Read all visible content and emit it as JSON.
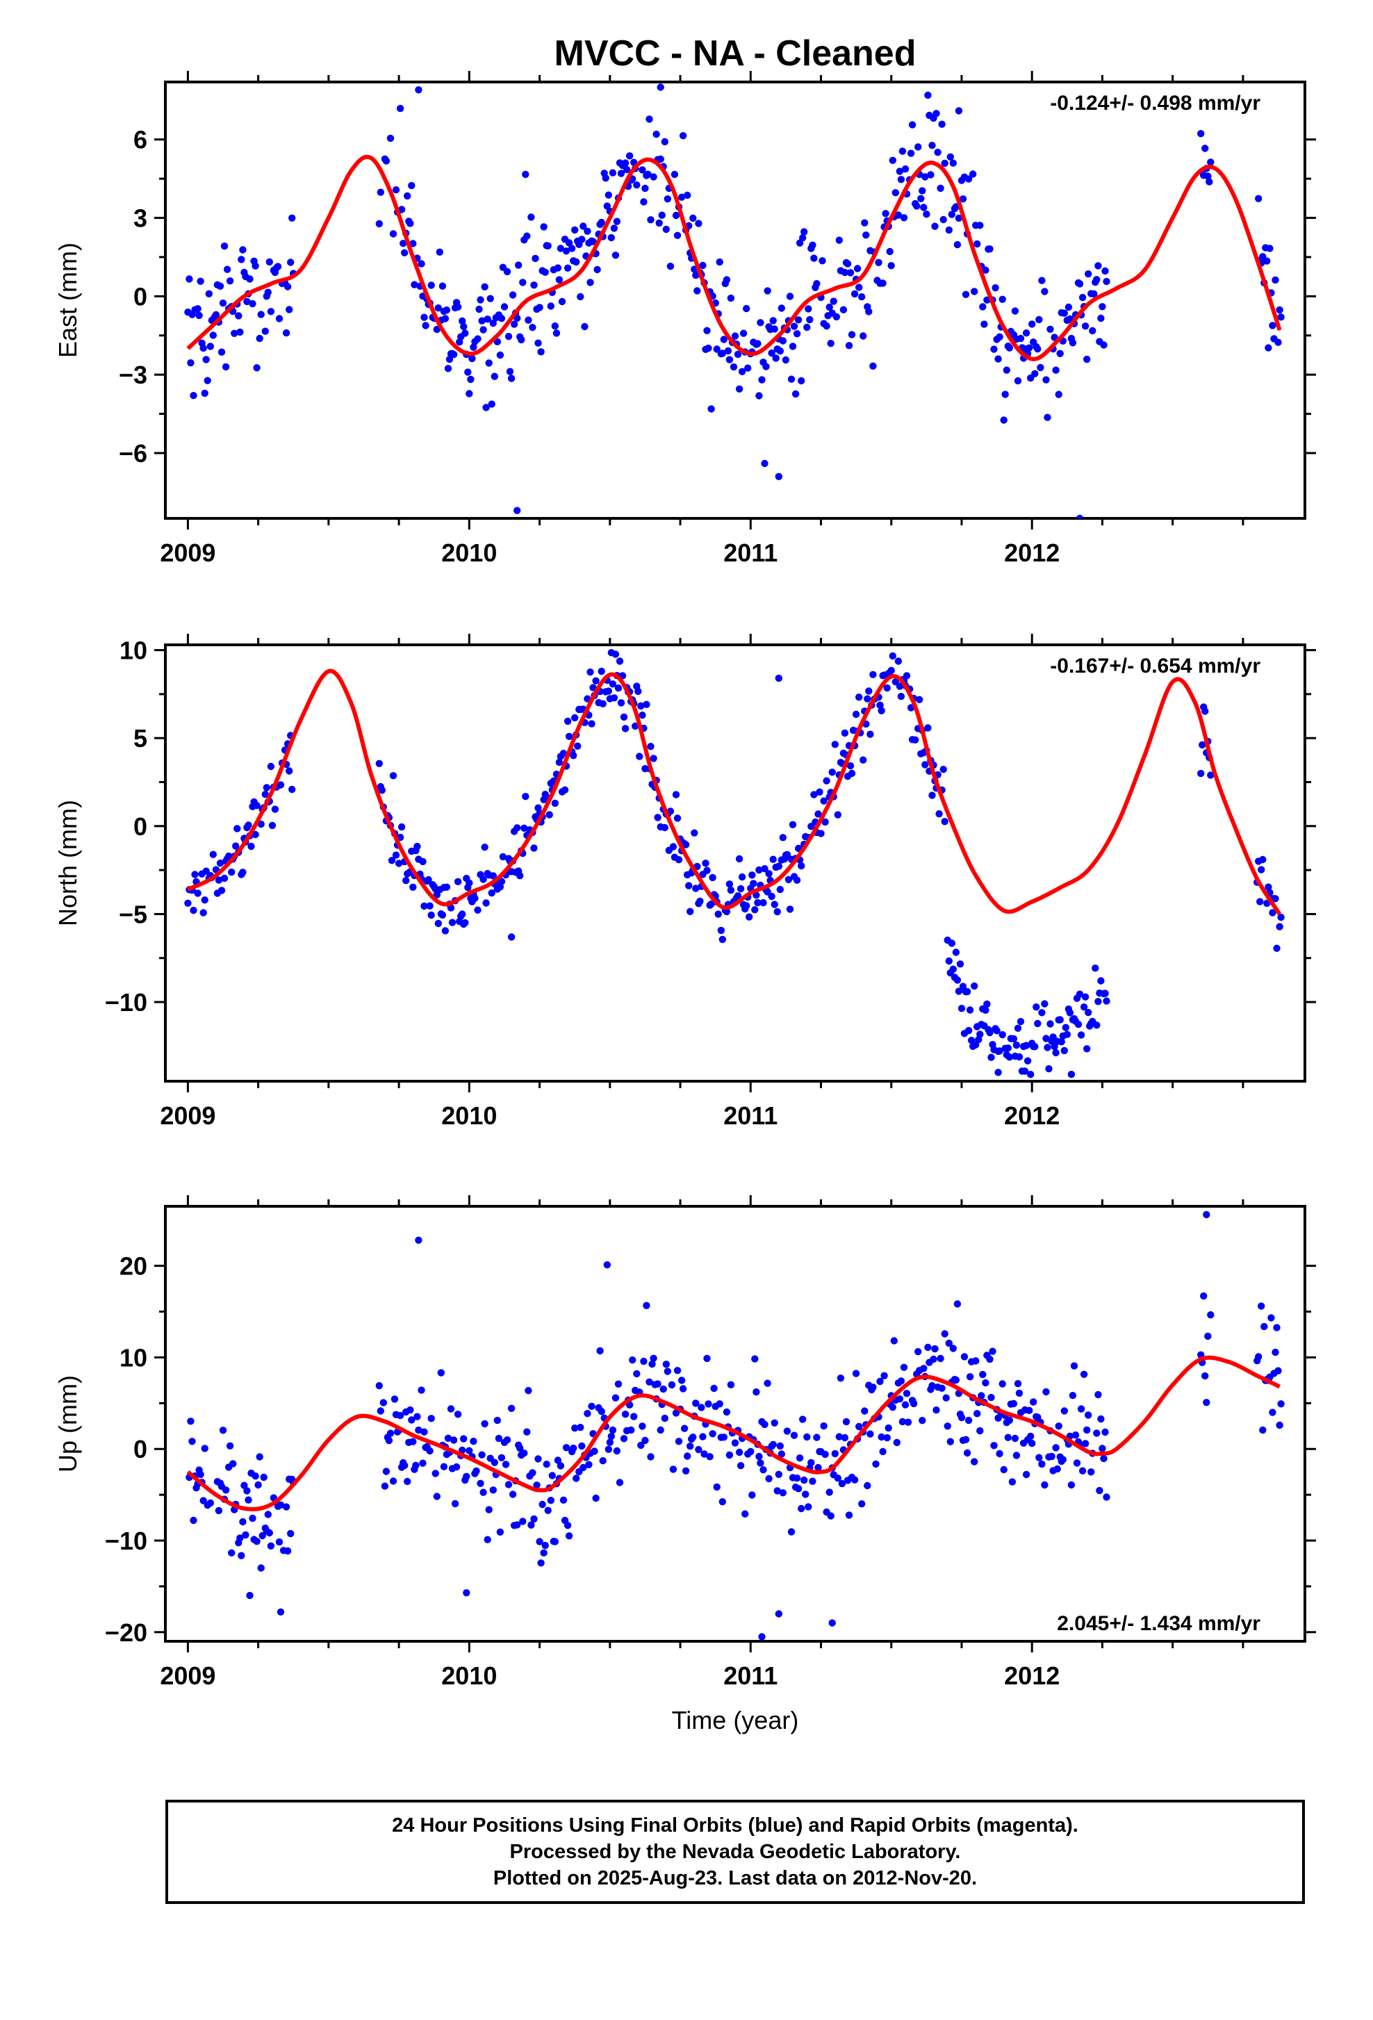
{
  "title": "MVCC  - NA - Cleaned",
  "footer": {
    "line1": "24 Hour Positions Using Final Orbits (blue) and Rapid Orbits (magenta).",
    "line2": "Processed by the Nevada Geodetic Laboratory.",
    "line3": "Plotted on 2025-Aug-23. Last data on 2012-Nov-20."
  },
  "colors": {
    "points": "#0000ff",
    "fit": "#ff0000",
    "axes": "#000000"
  },
  "chart_data": [
    {
      "type": "scatter",
      "component": "east",
      "ylabel": "East (mm)",
      "xlabel": "",
      "xlim": [
        2008.92,
        2012.97
      ],
      "ylim": [
        -8.5,
        8.2
      ],
      "xticks": [
        2009,
        2010,
        2011,
        2012
      ],
      "xtick_labels": [
        "2009",
        "2010",
        "2011",
        "2012"
      ],
      "yticks": [
        -6,
        -3,
        0,
        3,
        6
      ],
      "ytick_labels": [
        "−6",
        "−3",
        "0",
        "3",
        "6"
      ],
      "rate_label": "-0.124+/- 0.498 mm/yr",
      "rate_position": "top-right",
      "gaps": [
        [
          2009.38,
          2009.68
        ],
        [
          2012.27,
          2012.6
        ],
        [
          2012.64,
          2012.8
        ]
      ],
      "data_end": 2012.89,
      "scatter_sigma": 1.25,
      "outliers": [
        [
          2009.82,
          7.9
        ],
        [
          2010.17,
          -8.2
        ],
        [
          2010.68,
          8.0
        ],
        [
          2011.05,
          -6.4
        ],
        [
          2011.1,
          -6.9
        ],
        [
          2011.74,
          7.1
        ],
        [
          2012.17,
          -8.5
        ]
      ],
      "fit": {
        "x": [
          2009.0,
          2009.1,
          2009.2,
          2009.3,
          2009.4,
          2009.5,
          2009.58,
          2009.65,
          2009.72,
          2009.8,
          2009.9,
          2010.0,
          2010.1,
          2010.2,
          2010.3,
          2010.4,
          2010.5,
          2010.58,
          2010.65,
          2010.72,
          2010.8,
          2010.9,
          2011.0,
          2011.1,
          2011.2,
          2011.3,
          2011.4,
          2011.5,
          2011.58,
          2011.65,
          2011.72,
          2011.8,
          2011.9,
          2012.0,
          2012.1,
          2012.2,
          2012.3,
          2012.4,
          2012.5,
          2012.58,
          2012.65,
          2012.72,
          2012.8,
          2012.88
        ],
        "y": [
          -2.0,
          -1.0,
          0.0,
          0.5,
          1.0,
          3.0,
          4.8,
          5.3,
          4.0,
          1.5,
          -1.2,
          -2.2,
          -1.5,
          -0.2,
          0.3,
          1.0,
          3.0,
          4.8,
          5.2,
          4.2,
          1.5,
          -1.2,
          -2.2,
          -1.5,
          -0.2,
          0.3,
          0.8,
          3.0,
          4.6,
          5.1,
          4.2,
          1.5,
          -1.2,
          -2.4,
          -1.6,
          -0.3,
          0.3,
          1.0,
          3.0,
          4.6,
          4.9,
          3.8,
          1.4,
          -1.3
        ]
      }
    },
    {
      "type": "scatter",
      "component": "north",
      "ylabel": "North (mm)",
      "xlabel": "",
      "xlim": [
        2008.92,
        2012.97
      ],
      "ylim": [
        -14.5,
        10.3
      ],
      "xticks": [
        2009,
        2010,
        2011,
        2012
      ],
      "xtick_labels": [
        "2009",
        "2010",
        "2011",
        "2012"
      ],
      "yticks": [
        -10,
        -5,
        0,
        5,
        10
      ],
      "ytick_labels": [
        "−10",
        "−5",
        "0",
        "5",
        "10"
      ],
      "rate_label": "-0.167+/- 0.654 mm/yr",
      "rate_position": "top-right",
      "gaps": [
        [
          2009.38,
          2009.68
        ],
        [
          2012.27,
          2012.6
        ],
        [
          2012.64,
          2012.8
        ]
      ],
      "data_end": 2012.89,
      "scatter_sigma": 1.0,
      "offsets": [
        [
          2011.7,
          -8.2
        ]
      ],
      "outliers": [
        [
          2010.15,
          -6.3
        ],
        [
          2011.1,
          8.4
        ],
        [
          2011.88,
          -14.0
        ]
      ],
      "fit": {
        "x": [
          2009.0,
          2009.1,
          2009.2,
          2009.3,
          2009.4,
          2009.5,
          2009.58,
          2009.65,
          2009.72,
          2009.8,
          2009.9,
          2010.0,
          2010.1,
          2010.2,
          2010.3,
          2010.4,
          2010.5,
          2010.58,
          2010.65,
          2010.72,
          2010.8,
          2010.9,
          2011.0,
          2011.1,
          2011.2,
          2011.3,
          2011.4,
          2011.5,
          2011.58,
          2011.65,
          2011.72,
          2011.8,
          2011.9,
          2012.0,
          2012.1,
          2012.2,
          2012.3,
          2012.4,
          2012.5,
          2012.58,
          2012.65,
          2012.72,
          2012.8,
          2012.88
        ],
        "y": [
          -3.6,
          -2.8,
          -1.0,
          2.0,
          6.0,
          8.8,
          7.0,
          3.0,
          0.0,
          -2.5,
          -4.4,
          -3.8,
          -3.0,
          -1.0,
          2.0,
          6.0,
          8.6,
          7.0,
          3.0,
          0.0,
          -2.5,
          -4.6,
          -3.8,
          -3.0,
          -1.0,
          2.0,
          6.0,
          8.5,
          7.0,
          3.0,
          0.0,
          -2.8,
          -4.8,
          -4.3,
          -3.5,
          -2.5,
          0.0,
          4.0,
          8.2,
          7.0,
          3.0,
          0.0,
          -3.0,
          -5.0
        ]
      }
    },
    {
      "type": "scatter",
      "component": "up",
      "ylabel": "Up (mm)",
      "xlabel": "Time (year)",
      "xlim": [
        2008.92,
        2012.97
      ],
      "ylim": [
        -21,
        26.5
      ],
      "xticks": [
        2009,
        2010,
        2011,
        2012
      ],
      "xtick_labels": [
        "2009",
        "2010",
        "2011",
        "2012"
      ],
      "yticks": [
        -20,
        -10,
        0,
        10,
        20
      ],
      "ytick_labels": [
        "−20",
        "−10",
        "0",
        "10",
        "20"
      ],
      "rate_label": "2.045+/- 1.434 mm/yr",
      "rate_position": "bottom-right",
      "gaps": [
        [
          2009.38,
          2009.68
        ],
        [
          2012.27,
          2012.6
        ],
        [
          2012.64,
          2012.8
        ]
      ],
      "data_end": 2012.89,
      "scatter_sigma": 3.6,
      "outliers": [
        [
          2009.82,
          22.8
        ],
        [
          2010.49,
          20.1
        ],
        [
          2012.62,
          25.6
        ],
        [
          2011.1,
          -18.0
        ],
        [
          2011.04,
          -20.5
        ],
        [
          2009.33,
          -17.8
        ],
        [
          2009.22,
          -16.0
        ],
        [
          2009.99,
          -15.7
        ],
        [
          2011.29,
          -19.0
        ]
      ],
      "fit": {
        "x": [
          2009.0,
          2009.1,
          2009.2,
          2009.3,
          2009.4,
          2009.5,
          2009.6,
          2009.7,
          2009.8,
          2009.9,
          2010.0,
          2010.1,
          2010.2,
          2010.25,
          2010.3,
          2010.4,
          2010.5,
          2010.6,
          2010.7,
          2010.8,
          2010.9,
          2011.0,
          2011.1,
          2011.2,
          2011.25,
          2011.3,
          2011.4,
          2011.5,
          2011.6,
          2011.7,
          2011.8,
          2011.9,
          2012.0,
          2012.1,
          2012.2,
          2012.25,
          2012.3,
          2012.4,
          2012.5,
          2012.6,
          2012.7,
          2012.8,
          2012.88
        ],
        "y": [
          -2.5,
          -5.0,
          -6.5,
          -6.0,
          -3.0,
          1.0,
          3.5,
          3.0,
          1.5,
          0.3,
          -1.0,
          -2.5,
          -4.0,
          -4.5,
          -4.0,
          -1.0,
          3.5,
          5.8,
          5.0,
          3.5,
          2.5,
          1.0,
          -1.0,
          -2.3,
          -2.5,
          -1.8,
          2.0,
          5.5,
          7.8,
          7.2,
          5.5,
          4.0,
          3.0,
          1.5,
          -0.3,
          -0.5,
          0.0,
          3.0,
          7.0,
          9.8,
          9.5,
          8.0,
          6.8
        ]
      }
    }
  ]
}
